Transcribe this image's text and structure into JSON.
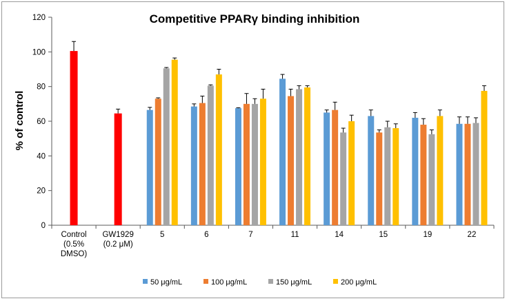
{
  "chart_data": {
    "type": "bar",
    "title": "Competitive PPARγ binding inhibition",
    "xlabel": "",
    "ylabel": "% of control",
    "ylim": [
      0,
      120
    ],
    "yticks": [
      0,
      20,
      40,
      60,
      80,
      100,
      120
    ],
    "grid": false,
    "legend_position": "bottom",
    "categories": [
      [
        "Control",
        "(0.5%",
        "DMSO)"
      ],
      [
        "GW1929",
        "(0.2 μM)"
      ],
      [
        "5"
      ],
      [
        "6"
      ],
      [
        "7"
      ],
      [
        "11"
      ],
      [
        "14"
      ],
      [
        "15"
      ],
      [
        "19"
      ],
      [
        "22"
      ]
    ],
    "control_bars": [
      {
        "category_index": 0,
        "value": 100.5,
        "error": 5.5,
        "color": "#ff0000"
      },
      {
        "category_index": 1,
        "value": 64.5,
        "error": 2.5,
        "color": "#ff0000"
      }
    ],
    "series": [
      {
        "name": "50 μg/mL",
        "color": "#5b9bd5",
        "values": [
          null,
          null,
          66.5,
          68.5,
          67.5,
          84.5,
          65,
          63,
          62,
          58.5
        ],
        "errors": [
          null,
          null,
          1.5,
          1.5,
          0.3,
          2.5,
          1.5,
          3.5,
          3,
          4
        ]
      },
      {
        "name": "100 μg/mL",
        "color": "#ed7d31",
        "values": [
          null,
          null,
          73,
          70.5,
          70,
          74.5,
          66.5,
          53.5,
          58,
          58.5
        ],
        "errors": [
          null,
          null,
          0.5,
          4,
          6,
          4,
          4.5,
          1.5,
          3.5,
          4
        ]
      },
      {
        "name": "150 μg/mL",
        "color": "#a5a5a5",
        "values": [
          null,
          null,
          90.5,
          80.5,
          70,
          78.5,
          53.5,
          56.5,
          52.5,
          59
        ],
        "errors": [
          null,
          null,
          0.5,
          0.5,
          3,
          2,
          2.5,
          3.5,
          2.5,
          3
        ]
      },
      {
        "name": "200 μg/mL",
        "color": "#ffc000",
        "values": [
          null,
          null,
          95.5,
          87,
          73,
          79.5,
          60,
          56,
          63,
          77.5
        ],
        "errors": [
          null,
          null,
          1,
          3,
          5.5,
          1,
          3.5,
          2.5,
          3.5,
          3
        ]
      }
    ]
  }
}
